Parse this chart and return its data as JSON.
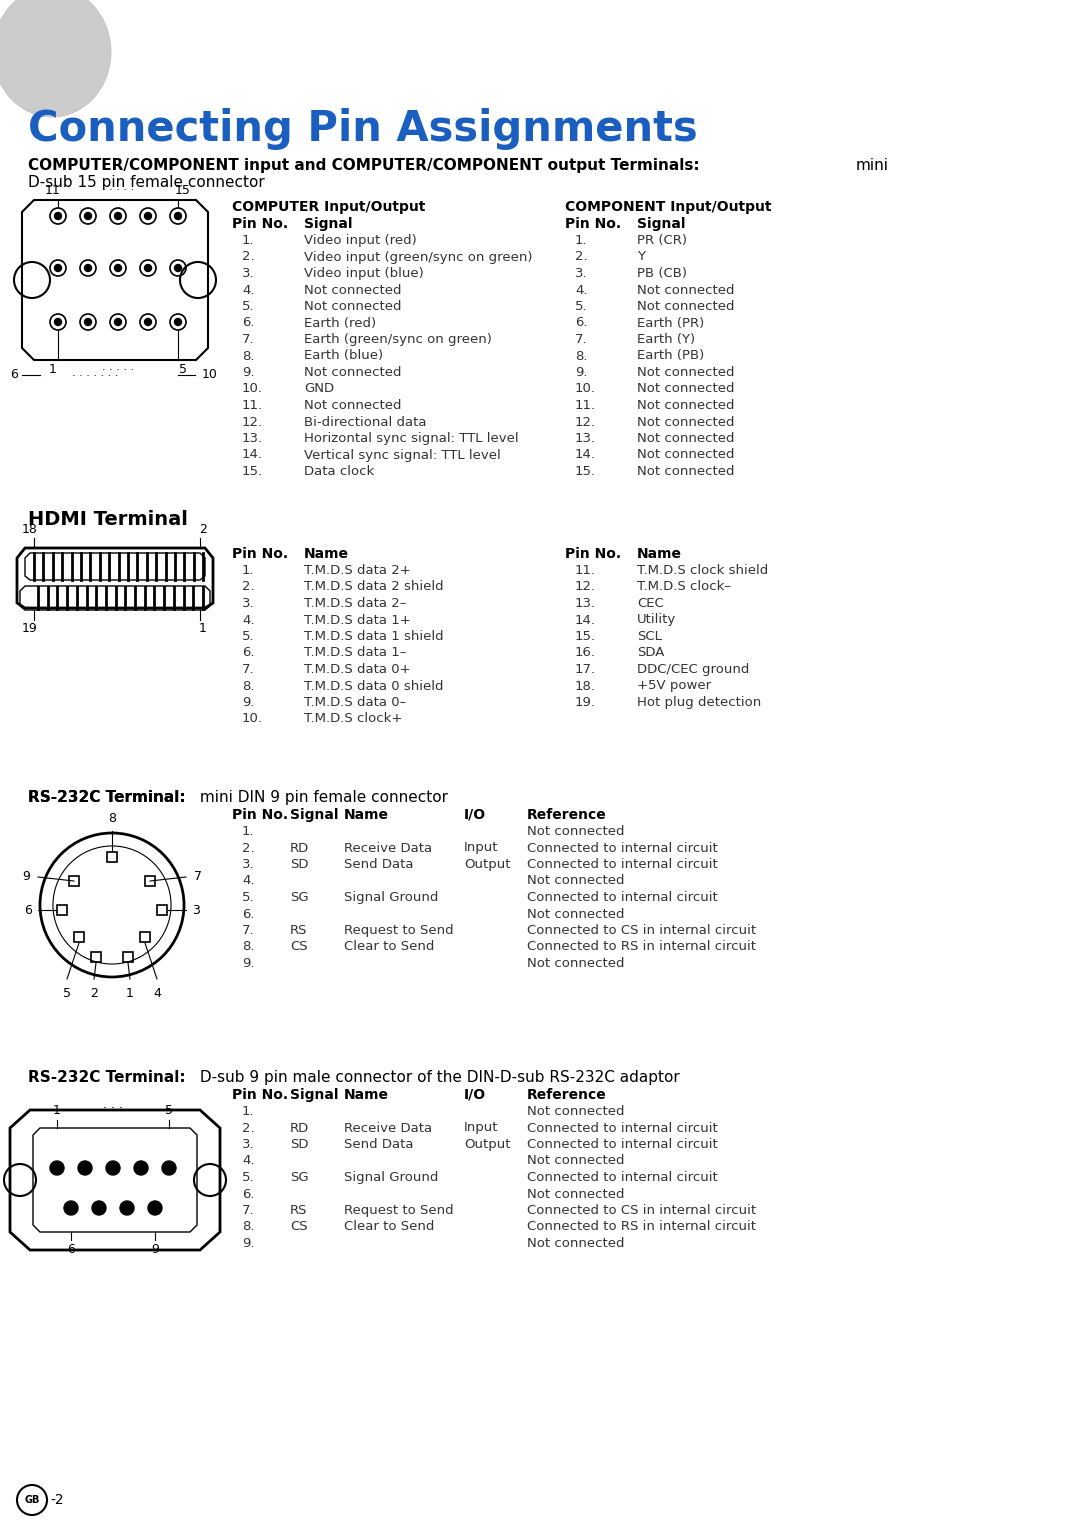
{
  "title": "Connecting Pin Assignments",
  "title_color": "#1a5fbf",
  "bg_color": "#ffffff",
  "section1_bold": "COMPUTER/COMPONENT input and COMPUTER/COMPONENT output Terminals:",
  "section1_normal": " mini",
  "section1_line2": "D-sub 15 pin female connector",
  "computer_io_title": "COMPUTER Input/Output",
  "computer_io_rows": [
    [
      "1.",
      "Video input (red)"
    ],
    [
      "2.",
      "Video input (green/sync on green)"
    ],
    [
      "3.",
      "Video input (blue)"
    ],
    [
      "4.",
      "Not connected"
    ],
    [
      "5.",
      "Not connected"
    ],
    [
      "6.",
      "Earth (red)"
    ],
    [
      "7.",
      "Earth (green/sync on green)"
    ],
    [
      "8.",
      "Earth (blue)"
    ],
    [
      "9.",
      "Not connected"
    ],
    [
      "10.",
      "GND"
    ],
    [
      "11.",
      "Not connected"
    ],
    [
      "12.",
      "Bi-directional data"
    ],
    [
      "13.",
      "Horizontal sync signal: TTL level"
    ],
    [
      "14.",
      "Vertical sync signal: TTL level"
    ],
    [
      "15.",
      "Data clock"
    ]
  ],
  "component_io_title": "COMPONENT Input/Output",
  "component_io_rows": [
    [
      "1.",
      "PR (CR)"
    ],
    [
      "2.",
      "Y"
    ],
    [
      "3.",
      "PB (CB)"
    ],
    [
      "4.",
      "Not connected"
    ],
    [
      "5.",
      "Not connected"
    ],
    [
      "6.",
      "Earth (PR)"
    ],
    [
      "7.",
      "Earth (Y)"
    ],
    [
      "8.",
      "Earth (PB)"
    ],
    [
      "9.",
      "Not connected"
    ],
    [
      "10.",
      "Not connected"
    ],
    [
      "11.",
      "Not connected"
    ],
    [
      "12.",
      "Not connected"
    ],
    [
      "13.",
      "Not connected"
    ],
    [
      "14.",
      "Not connected"
    ],
    [
      "15.",
      "Not connected"
    ]
  ],
  "hdmi_heading": "HDMI Terminal",
  "hdmi_left_rows": [
    [
      "1.",
      "T.M.D.S data 2+"
    ],
    [
      "2.",
      "T.M.D.S data 2 shield"
    ],
    [
      "3.",
      "T.M.D.S data 2–"
    ],
    [
      "4.",
      "T.M.D.S data 1+"
    ],
    [
      "5.",
      "T.M.D.S data 1 shield"
    ],
    [
      "6.",
      "T.M.D.S data 1–"
    ],
    [
      "7.",
      "T.M.D.S data 0+"
    ],
    [
      "8.",
      "T.M.D.S data 0 shield"
    ],
    [
      "9.",
      "T.M.D.S data 0–"
    ],
    [
      "10.",
      "T.M.D.S clock+"
    ]
  ],
  "hdmi_right_rows": [
    [
      "11.",
      "T.M.D.S clock shield"
    ],
    [
      "12.",
      "T.M.D.S clock–"
    ],
    [
      "13.",
      "CEC"
    ],
    [
      "14.",
      "Utility"
    ],
    [
      "15.",
      "SCL"
    ],
    [
      "16.",
      "SDA"
    ],
    [
      "17.",
      "DDC/CEC ground"
    ],
    [
      "18.",
      "+5V power"
    ],
    [
      "19.",
      "Hot plug detection"
    ]
  ],
  "rs232c_mini_bold": "RS-232C Terminal:",
  "rs232c_mini_normal": " mini DIN 9 pin female connector",
  "rs232c_dsub_bold": "RS-232C Terminal:",
  "rs232c_dsub_normal": " D-sub 9 pin male connector of the DIN-D-sub RS-232C adaptor",
  "rs232c_rows": [
    [
      "1.",
      "",
      "",
      "",
      "Not connected"
    ],
    [
      "2.",
      "RD",
      "Receive Data",
      "Input",
      "Connected to internal circuit"
    ],
    [
      "3.",
      "SD",
      "Send Data",
      "Output",
      "Connected to internal circuit"
    ],
    [
      "4.",
      "",
      "",
      "",
      "Not connected"
    ],
    [
      "5.",
      "SG",
      "Signal Ground",
      "",
      "Connected to internal circuit"
    ],
    [
      "6.",
      "",
      "",
      "",
      "Not connected"
    ],
    [
      "7.",
      "RS",
      "Request to Send",
      "",
      "Connected to CS in internal circuit"
    ],
    [
      "8.",
      "CS",
      "Clear to Send",
      "",
      "Connected to RS in internal circuit"
    ],
    [
      "9.",
      "",
      "",
      "",
      "Not connected"
    ]
  ]
}
